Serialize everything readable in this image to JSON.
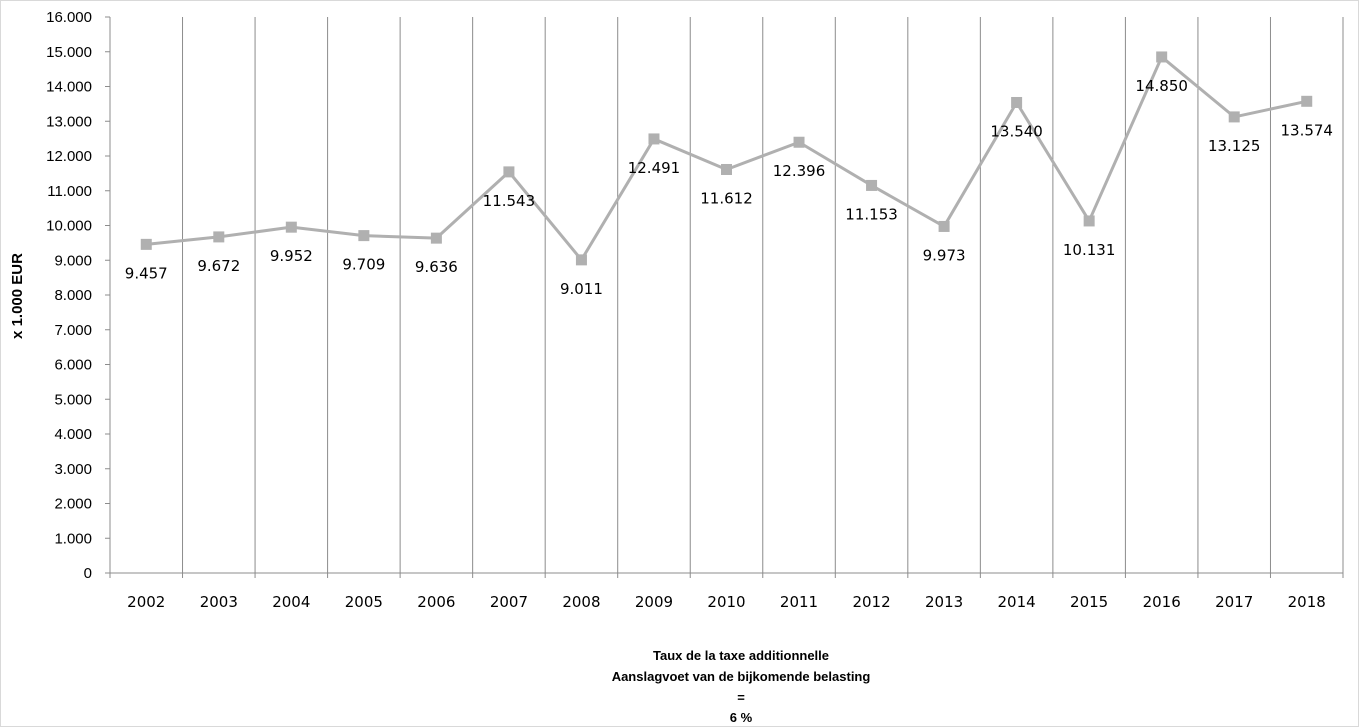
{
  "chart_data": {
    "type": "line",
    "ylabel": "x 1.000 EUR",
    "xlabel": "",
    "ylim": [
      0,
      16000
    ],
    "y_ticks": [
      "0",
      "1.000",
      "2.000",
      "3.000",
      "4.000",
      "5.000",
      "6.000",
      "7.000",
      "8.000",
      "9.000",
      "10.000",
      "11.000",
      "12.000",
      "13.000",
      "14.000",
      "15.000",
      "16.000"
    ],
    "categories": [
      "2002",
      "2003",
      "2004",
      "2005",
      "2006",
      "2007",
      "2008",
      "2009",
      "2010",
      "2011",
      "2012",
      "2013",
      "2014",
      "2015",
      "2016",
      "2017",
      "2018"
    ],
    "series": [
      {
        "values": [
          9457,
          9672,
          9952,
          9709,
          9636,
          11543,
          9011,
          12491,
          11612,
          12396,
          11153,
          9973,
          13540,
          10131,
          14850,
          13125,
          13574
        ],
        "labels": [
          "9.457",
          "9.672",
          "9.952",
          "9.709",
          "9.636",
          "11.543",
          "9.011",
          "12.491",
          "11.612",
          "12.396",
          "11.153",
          "9.973",
          "13.540",
          "10.131",
          "14.850",
          "13.125",
          "13.574"
        ],
        "color": "#b0b0b0",
        "marker": "square"
      }
    ],
    "grid": "vertical",
    "legend": "none",
    "caption": [
      "Taux de la taxe additionnelle",
      "Aanslagvoet  van de bijkomende belasting",
      "=",
      "6 %"
    ]
  }
}
